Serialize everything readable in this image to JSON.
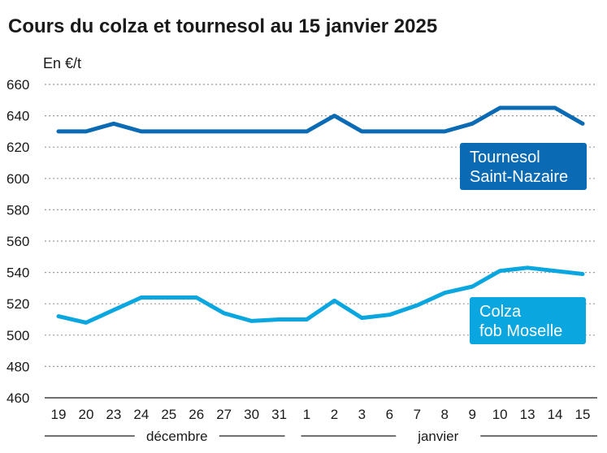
{
  "chart_data": {
    "type": "line",
    "title": "Cours du colza et tournesol au 15 janvier 2025",
    "ylabel": "En €/t",
    "ylim": [
      460,
      660
    ],
    "yticks": [
      460,
      480,
      500,
      520,
      540,
      560,
      580,
      600,
      620,
      640,
      660
    ],
    "grid": true,
    "categories": [
      "19",
      "20",
      "23",
      "24",
      "25",
      "26",
      "27",
      "30",
      "31",
      "1",
      "2",
      "3",
      "6",
      "7",
      "8",
      "9",
      "10",
      "13",
      "14",
      "15"
    ],
    "groups": [
      {
        "label": "décembre",
        "from": 0,
        "to": 8
      },
      {
        "label": "janvier",
        "from": 9,
        "to": 19
      }
    ],
    "series": [
      {
        "name": "Tournesol Saint-Nazaire",
        "label_lines": [
          "Tournesol",
          "Saint-Nazaire"
        ],
        "color": "#0a6ab3",
        "values": [
          630,
          630,
          635,
          630,
          630,
          630,
          630,
          630,
          630,
          630,
          640,
          630,
          630,
          630,
          630,
          635,
          645,
          645,
          645,
          635
        ]
      },
      {
        "name": "Colza fob Moselle",
        "label_lines": [
          "Colza",
          "fob Moselle"
        ],
        "color": "#0aa6df",
        "values": [
          512,
          508,
          516,
          524,
          524,
          524,
          514,
          509,
          510,
          510,
          522,
          511,
          513,
          519,
          527,
          531,
          541,
          543,
          541,
          539
        ]
      }
    ]
  }
}
